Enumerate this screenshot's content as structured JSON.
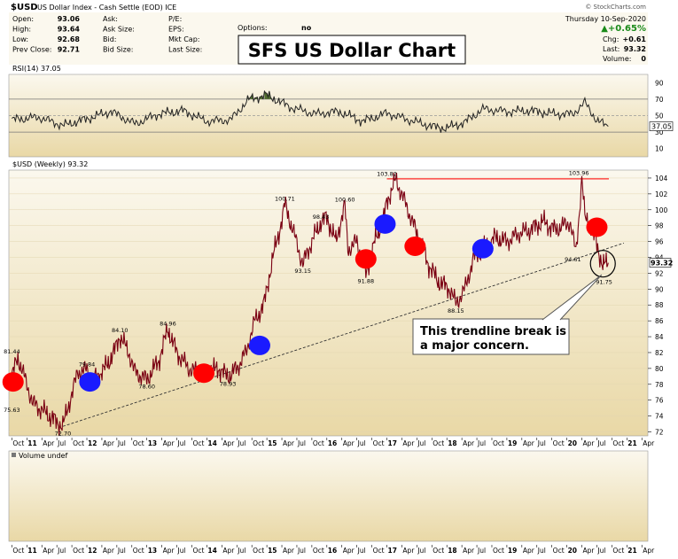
{
  "header": {
    "symbol": "$USD",
    "description": "US Dollar Index - Cash Settle (EOD) ICE",
    "watermark": "© StockCharts.com",
    "date": "Thursday 10-Sep-2020",
    "stats_left": [
      {
        "label": "Open:",
        "value": "93.06"
      },
      {
        "label": "High:",
        "value": "93.64"
      },
      {
        "label": "Low:",
        "value": "92.68"
      },
      {
        "label": "Prev Close:",
        "value": "92.71"
      }
    ],
    "stats_mid1": [
      {
        "label": "Ask:",
        "value": ""
      },
      {
        "label": "Ask Size:",
        "value": ""
      },
      {
        "label": "Bid:",
        "value": ""
      },
      {
        "label": "Bid Size:",
        "value": ""
      }
    ],
    "stats_mid2": [
      {
        "label": "P/E:",
        "value": ""
      },
      {
        "label": "EPS:",
        "value": ""
      },
      {
        "label": "Mkt Cap:",
        "value": ""
      },
      {
        "label": "Last Size:",
        "value": ""
      }
    ],
    "options_label": "Options:",
    "options_value": "no",
    "change_pct": "▲+0.65%",
    "stats_right": [
      {
        "label": "Chg:",
        "value": "+0.61"
      },
      {
        "label": "Last:",
        "value": "93.32"
      },
      {
        "label": "Volume:",
        "value": "0"
      }
    ]
  },
  "overlay_title": "SFS US Dollar Chart",
  "colors": {
    "panel_top": "#fbf8ee",
    "panel_bottom": "#e9d8a6",
    "price": "#7a0012",
    "rsi": "#222222",
    "resistance": "#ff2a2a",
    "rsi_fill": "#4f6b2f",
    "red_marker": "#ff0000",
    "blue_marker": "#1a1aff"
  },
  "chart_data": [
    {
      "type": "line",
      "name": "RSI(14) 37.05",
      "label": "RSI(14) 37.05",
      "current_value": 37.05,
      "current_label": "37.05",
      "y_ticks": [
        10,
        30,
        50,
        70,
        90
      ],
      "ylim": [
        0,
        100
      ],
      "reference_lines": [
        30,
        50,
        70
      ],
      "x": [
        2010.75,
        2011.2,
        2011.6,
        2012.0,
        2012.4,
        2012.8,
        2013.2,
        2013.6,
        2014.0,
        2014.4,
        2014.7,
        2015.0,
        2015.4,
        2015.8,
        2016.2,
        2016.6,
        2017.0,
        2017.4,
        2017.8,
        2018.0,
        2018.3,
        2018.6,
        2019.0,
        2019.4,
        2019.8,
        2020.1,
        2020.3,
        2020.5,
        2020.69
      ],
      "values": [
        45,
        48,
        38,
        46,
        55,
        40,
        52,
        56,
        43,
        45,
        70,
        75,
        60,
        52,
        55,
        43,
        53,
        44,
        36,
        35,
        42,
        58,
        55,
        56,
        52,
        52,
        66,
        44,
        37
      ]
    },
    {
      "type": "line",
      "label": "$USD (Weekly) 93.32",
      "current_value": 93.32,
      "current_label": "93.32",
      "y_ticks": [
        72,
        74,
        76,
        78,
        80,
        82,
        84,
        86,
        88,
        90,
        92,
        94,
        96,
        98,
        100,
        102,
        104
      ],
      "ylim": [
        71.5,
        105
      ],
      "x_tick_labels": [
        "Oct",
        "11",
        "Apr",
        "Jul",
        "Oct",
        "12",
        "Apr",
        "Jul",
        "Oct",
        "13",
        "Apr",
        "Jul",
        "Oct",
        "14",
        "Apr",
        "Jul",
        "Oct",
        "15",
        "Apr",
        "Jul",
        "Oct",
        "16",
        "Apr",
        "Jul",
        "Oct",
        "17",
        "Apr",
        "Jul",
        "Oct",
        "18",
        "Apr",
        "Jul",
        "Oct",
        "19",
        "Apr",
        "Jul",
        "Oct",
        "20",
        "Apr",
        "Jul",
        "Oct",
        "21",
        "Apr"
      ],
      "x_tick_start": 2010.75,
      "x_tick_step": 0.25,
      "xlim": [
        2010.7,
        2021.35
      ],
      "x": [
        2010.75,
        2010.85,
        2011.0,
        2011.1,
        2011.3,
        2011.45,
        2011.6,
        2011.7,
        2011.85,
        2012.0,
        2012.1,
        2012.3,
        2012.45,
        2012.55,
        2012.7,
        2012.8,
        2013.0,
        2013.2,
        2013.35,
        2013.5,
        2013.7,
        2013.85,
        2014.0,
        2014.2,
        2014.35,
        2014.5,
        2014.65,
        2014.8,
        2014.95,
        2015.1,
        2015.2,
        2015.3,
        2015.45,
        2015.6,
        2015.75,
        2015.9,
        2016.0,
        2016.15,
        2016.3,
        2016.35,
        2016.5,
        2016.65,
        2016.8,
        2016.95,
        2017.0,
        2017.15,
        2017.35,
        2017.55,
        2017.7,
        2017.85,
        2018.05,
        2018.15,
        2018.3,
        2018.45,
        2018.6,
        2018.8,
        2019.0,
        2019.2,
        2019.4,
        2019.6,
        2019.8,
        2019.95,
        2020.05,
        2020.15,
        2020.2,
        2020.25,
        2020.3,
        2020.4,
        2020.5,
        2020.6,
        2020.69
      ],
      "values": [
        79,
        81.4,
        78,
        75.6,
        74.5,
        73.5,
        72.7,
        75.5,
        79.5,
        79.84,
        78.5,
        80,
        82,
        84.1,
        82,
        79.5,
        78.6,
        81,
        84.96,
        82,
        80,
        79.5,
        79.5,
        80,
        78.93,
        80,
        82,
        86,
        88,
        94,
        97,
        100.71,
        97,
        93.15,
        96,
        98.43,
        99,
        96,
        100.6,
        95,
        96,
        91.88,
        96,
        99,
        101,
        103.82,
        100,
        96,
        93,
        91,
        90,
        88.15,
        90,
        94,
        95,
        96.5,
        96,
        97,
        97.5,
        98.5,
        97.5,
        98,
        98.5,
        94.61,
        99,
        103.96,
        99,
        98,
        95.5,
        93,
        93.32
      ]
    }
  ],
  "price_labels": [
    {
      "x": 2010.75,
      "y": 81.44,
      "text": "81.44",
      "pos": "above"
    },
    {
      "x": 2010.75,
      "y": 75.63,
      "text": "75.63",
      "pos": "below"
    },
    {
      "x": 2011.6,
      "y": 72.7,
      "text": "72.70",
      "pos": "below"
    },
    {
      "x": 2012.0,
      "y": 79.84,
      "text": "79.84",
      "pos": "above"
    },
    {
      "x": 2012.55,
      "y": 84.1,
      "text": "84.10",
      "pos": "above"
    },
    {
      "x": 2013.0,
      "y": 78.6,
      "text": "78.60",
      "pos": "below"
    },
    {
      "x": 2013.35,
      "y": 84.96,
      "text": "84.96",
      "pos": "above"
    },
    {
      "x": 2014.35,
      "y": 78.93,
      "text": "78.93",
      "pos": "below"
    },
    {
      "x": 2015.3,
      "y": 100.71,
      "text": "100.71",
      "pos": "above"
    },
    {
      "x": 2015.6,
      "y": 93.15,
      "text": "93.15",
      "pos": "below"
    },
    {
      "x": 2015.9,
      "y": 98.43,
      "text": "98.43",
      "pos": "above"
    },
    {
      "x": 2016.3,
      "y": 100.6,
      "text": "100.60",
      "pos": "above"
    },
    {
      "x": 2016.65,
      "y": 91.88,
      "text": "91.88",
      "pos": "below"
    },
    {
      "x": 2017.0,
      "y": 103.82,
      "text": "103.82",
      "pos": "above"
    },
    {
      "x": 2018.15,
      "y": 88.15,
      "text": "88.15",
      "pos": "below"
    },
    {
      "x": 2020.2,
      "y": 103.96,
      "text": "103.96",
      "pos": "above"
    },
    {
      "x": 2020.1,
      "y": 94.61,
      "text": "94.61",
      "pos": "below"
    },
    {
      "x": 2020.62,
      "y": 91.75,
      "text": "91.75",
      "pos": "below"
    }
  ],
  "resistance": {
    "x0": 2017.0,
    "x1": 2020.7,
    "y": 103.9
  },
  "trendline": {
    "x0": 2011.6,
    "y0": 72.7,
    "x1": 2020.95,
    "y1": 95.8
  },
  "markers": [
    {
      "x": 2010.77,
      "y": 78.3,
      "color": "red"
    },
    {
      "x": 2012.05,
      "y": 78.3,
      "color": "blue"
    },
    {
      "x": 2013.95,
      "y": 79.4,
      "color": "red"
    },
    {
      "x": 2014.88,
      "y": 82.9,
      "color": "blue"
    },
    {
      "x": 2016.65,
      "y": 93.8,
      "color": "red"
    },
    {
      "x": 2016.97,
      "y": 98.2,
      "color": "blue"
    },
    {
      "x": 2017.47,
      "y": 95.4,
      "color": "red"
    },
    {
      "x": 2018.6,
      "y": 95.1,
      "color": "blue"
    },
    {
      "x": 2020.5,
      "y": 97.8,
      "color": "red"
    }
  ],
  "circle": {
    "x": 2020.6,
    "y": 93.2
  },
  "annotation": {
    "lines": [
      "This trendline break is",
      "a major concern."
    ],
    "pointer_to": {
      "x": 2020.58,
      "y": 91.8
    }
  },
  "volume": {
    "label": "Volume undef"
  }
}
